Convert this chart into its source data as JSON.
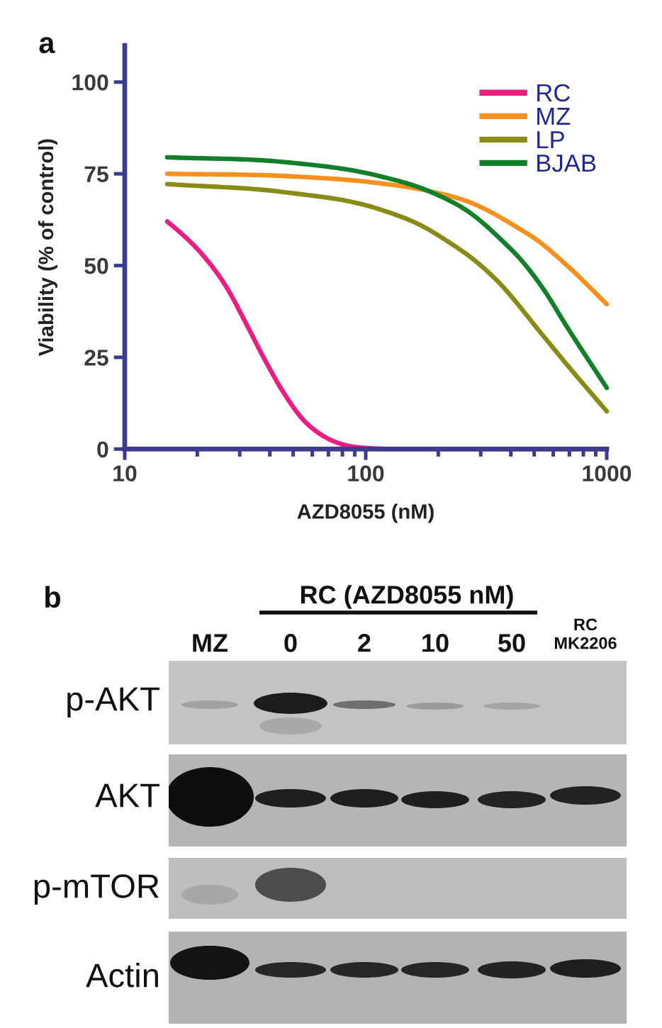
{
  "chart_data": [
    {
      "type": "line",
      "title": "a",
      "xlabel": "AZD8055 (nM)",
      "ylabel": "Viability (% of control)",
      "log": "x",
      "xlim": [
        10,
        1000
      ],
      "xticks": [
        10,
        {
          "value": 20,
          "label": null
        },
        {
          "value": 30,
          "label": null
        },
        {
          "value": 40,
          "label": null
        },
        {
          "value": 50,
          "label": null
        },
        {
          "value": 60,
          "label": null
        },
        {
          "value": 70,
          "label": null
        },
        {
          "value": 80,
          "label": null
        },
        {
          "value": 90,
          "label": null
        },
        100,
        {
          "value": 200,
          "label": null
        },
        {
          "value": 300,
          "label": null
        },
        {
          "value": 400,
          "label": null
        },
        {
          "value": 500,
          "label": null
        },
        {
          "value": 600,
          "label": null
        },
        {
          "value": 700,
          "label": null
        },
        {
          "value": 800,
          "label": null
        },
        {
          "value": 900,
          "label": null
        },
        1000
      ],
      "ylim": [
        0,
        110
      ],
      "yticks": [
        0,
        25,
        50,
        75,
        100
      ],
      "legend": "top right",
      "series": [
        {
          "name": "RC",
          "color": "#ec1c83",
          "x": [
            15,
            17,
            21,
            26.5,
            32,
            38,
            45.5,
            55,
            65,
            78,
            100,
            150,
            1000
          ],
          "values": [
            62,
            59,
            53,
            44,
            34,
            24.5,
            15.5,
            8,
            4,
            1.5,
            0.3,
            0,
            0
          ]
        },
        {
          "name": "MZ",
          "color": "#f7901e",
          "x": [
            15,
            46,
            112,
            177,
            276,
            435,
            500,
            685,
            1000
          ],
          "values": [
            75,
            74.4,
            72.5,
            70.5,
            67,
            60,
            57.5,
            50,
            39.5
          ]
        },
        {
          "name": "LP",
          "color": "#8a8a16",
          "x": [
            15,
            46,
            112,
            177,
            221,
            276,
            347,
            546,
            684,
            1000
          ],
          "values": [
            72.2,
            70,
            65.5,
            60.3,
            56.4,
            52,
            46.2,
            30.8,
            23,
            10.3
          ]
        },
        {
          "name": "BJAB",
          "color": "#12802a",
          "x": [
            15,
            46,
            112,
            184,
            276,
            372,
            435,
            546,
            684,
            1000
          ],
          "values": [
            79.5,
            78.2,
            74.5,
            70.2,
            64,
            56.5,
            52,
            43.6,
            33.3,
            16.7
          ]
        }
      ]
    },
    {
      "type": "other",
      "title": "b",
      "annotations": [
        "RC (AZD8055 nM)",
        "MZ",
        "0",
        "2",
        "10",
        "50",
        "RC\nMK2206",
        "p-AKT",
        "AKT",
        "p-mTOR",
        "Actin"
      ]
    }
  ]
}
